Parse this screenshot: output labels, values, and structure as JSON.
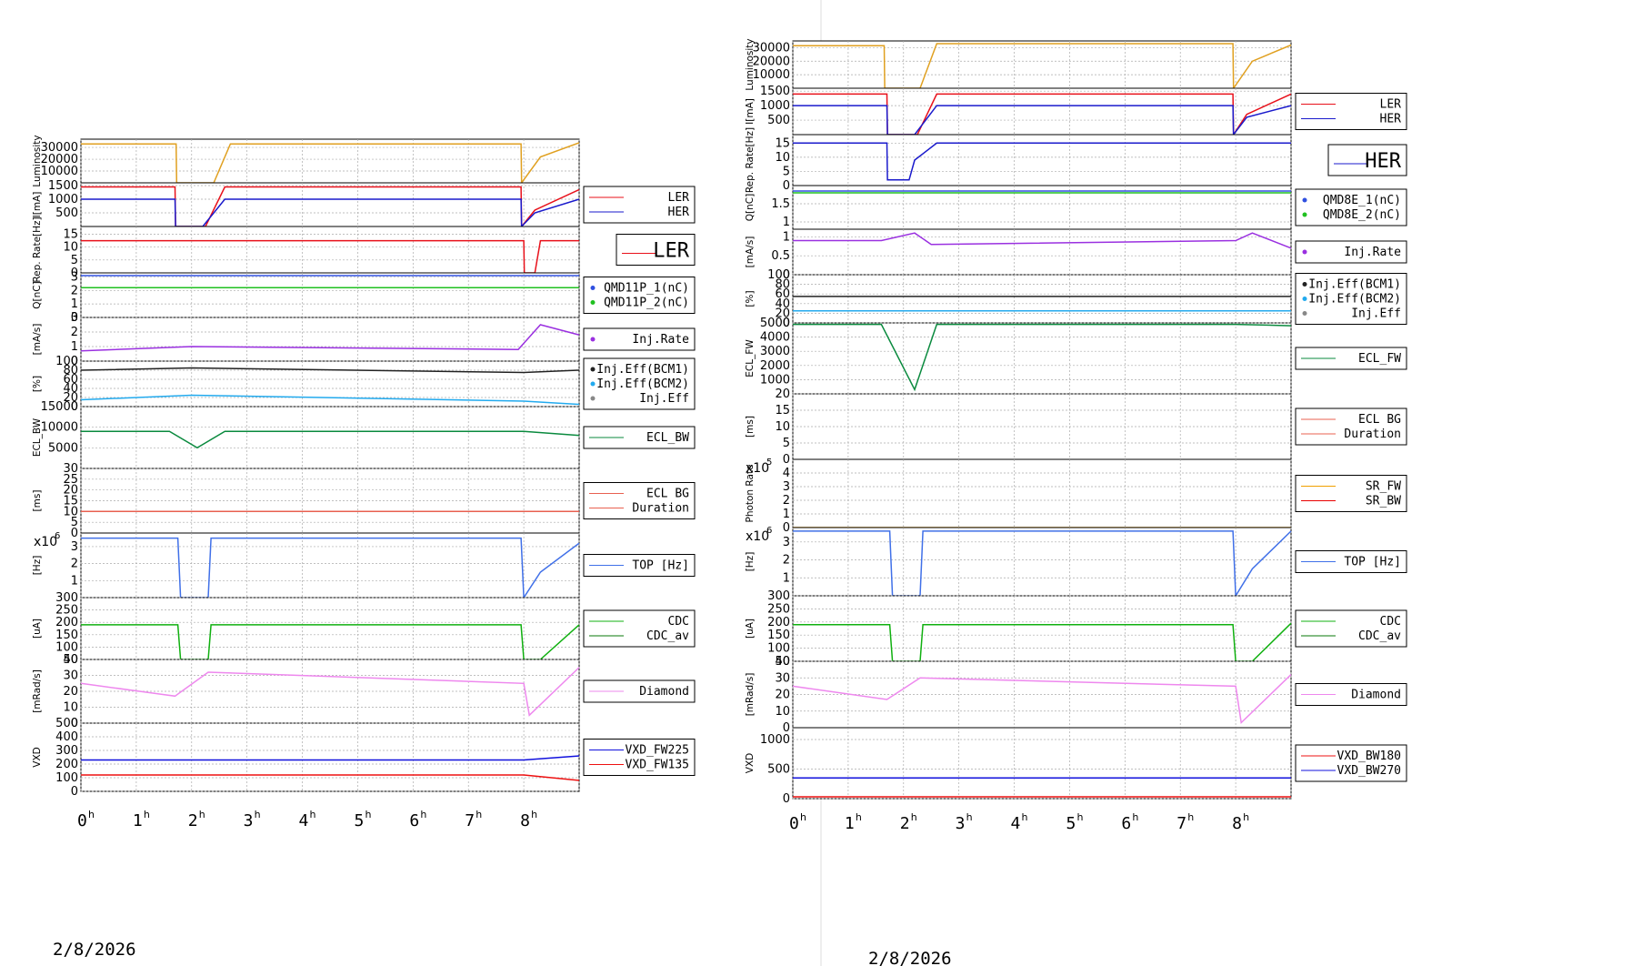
{
  "left": {
    "date": "2/8/2026",
    "x_tick_labels": [
      "0",
      "1",
      "2",
      "3",
      "4",
      "5",
      "6",
      "7",
      "8"
    ],
    "panels": [
      {
        "id": "lum",
        "ylabel": "Luminosity",
        "yticks": [
          10000,
          20000,
          30000
        ],
        "ylim": [
          0,
          37000
        ],
        "legend": []
      },
      {
        "id": "cur",
        "ylabel": "I[mA]",
        "yticks": [
          500,
          1000,
          1500
        ],
        "ylim": [
          0,
          1600
        ],
        "legend": [
          "LER",
          "HER"
        ]
      },
      {
        "id": "rep",
        "ylabel": "Rep. Rate[Hz]",
        "yticks": [
          0,
          5,
          10,
          15
        ],
        "ylim": [
          0,
          18
        ],
        "legend": [
          "LER"
        ],
        "legend_big": true
      },
      {
        "id": "q",
        "ylabel": "Q[nC]",
        "yticks": [
          0,
          1,
          2,
          3
        ],
        "ylim": [
          0,
          3.3
        ],
        "legend": [
          "QMD11P_1(nC)",
          "QMD11P_2(nC)"
        ]
      },
      {
        "id": "inj",
        "ylabel": "[mA/s]",
        "yticks": [
          0,
          1,
          2,
          3
        ],
        "ylim": [
          0,
          3
        ],
        "legend": [
          "Inj.Rate"
        ]
      },
      {
        "id": "eff",
        "ylabel": "[%]",
        "yticks": [
          0,
          20,
          40,
          60,
          80,
          100
        ],
        "ylim": [
          0,
          100
        ],
        "legend": [
          "Inj.Eff(BCM1)",
          "Inj.Eff(BCM2)",
          "Inj.Eff"
        ]
      },
      {
        "id": "eclbw",
        "ylabel": "ECL_BW",
        "yticks": [
          5000,
          10000,
          15000
        ],
        "ylim": [
          0,
          15000
        ],
        "legend": [
          "ECL_BW"
        ]
      },
      {
        "id": "eclbg",
        "ylabel": "[ms]",
        "yticks": [
          0,
          5,
          10,
          15,
          20,
          25,
          30
        ],
        "ylim": [
          0,
          30
        ],
        "legend": [
          "ECL BG",
          "Duration"
        ]
      },
      {
        "id": "top",
        "ylabel": "[Hz]",
        "yticks": [
          1,
          2,
          3
        ],
        "ylim": [
          0,
          3.8
        ],
        "exponent": "x10",
        "exp_power": "6",
        "legend": [
          "TOP [Hz]"
        ]
      },
      {
        "id": "cdc",
        "ylabel": "[uA]",
        "yticks": [
          50,
          100,
          150,
          200,
          250,
          300
        ],
        "ylim": [
          50,
          300
        ],
        "legend": [
          "CDC",
          "CDC_av"
        ]
      },
      {
        "id": "dia",
        "ylabel": "[mRad/s]",
        "yticks": [
          0,
          10,
          20,
          30,
          40
        ],
        "ylim": [
          0,
          40
        ],
        "legend": [
          "Diamond"
        ]
      },
      {
        "id": "vxd",
        "ylabel": "VXD",
        "yticks": [
          0,
          100,
          200,
          300,
          400,
          500
        ],
        "ylim": [
          0,
          500
        ],
        "legend": [
          "VXD_FW225",
          "VXD_FW135"
        ]
      }
    ]
  },
  "right": {
    "date": "2/8/2026",
    "x_tick_labels": [
      "0",
      "1",
      "2",
      "3",
      "4",
      "5",
      "6",
      "7",
      "8"
    ],
    "panels": [
      {
        "id": "lum",
        "ylabel": "Luminosity",
        "yticks": [
          10000,
          20000,
          30000
        ],
        "ylim": [
          0,
          35000
        ],
        "legend": []
      },
      {
        "id": "cur",
        "ylabel": "I[mA]",
        "yticks": [
          500,
          1000,
          1500
        ],
        "ylim": [
          0,
          1600
        ],
        "legend": [
          "LER",
          "HER"
        ]
      },
      {
        "id": "rep",
        "ylabel": "Rep. Rate[Hz]",
        "yticks": [
          0,
          5,
          10,
          15
        ],
        "ylim": [
          0,
          18
        ],
        "legend": [
          "HER"
        ],
        "legend_big": true
      },
      {
        "id": "q",
        "ylabel": "Q[nC]",
        "yticks": [
          1,
          1.5
        ],
        "ylim": [
          0.8,
          2.0
        ],
        "legend": [
          "QMD8E_1(nC)",
          "QMD8E_2(nC)"
        ]
      },
      {
        "id": "inj",
        "ylabel": "[mA/s]",
        "yticks": [
          0,
          0.5,
          1
        ],
        "ylim": [
          0,
          1.2
        ],
        "legend": [
          "Inj.Rate"
        ]
      },
      {
        "id": "eff",
        "ylabel": "[%]",
        "yticks": [
          0,
          20,
          40,
          60,
          80,
          100
        ],
        "ylim": [
          0,
          100
        ],
        "legend": [
          "Inj.Eff(BCM1)",
          "Inj.Eff(BCM2)",
          "Inj.Eff"
        ]
      },
      {
        "id": "eclfw",
        "ylabel": "ECL_FW",
        "yticks": [
          1000,
          2000,
          3000,
          4000,
          5000
        ],
        "ylim": [
          0,
          5000
        ],
        "legend": [
          "ECL_FW"
        ]
      },
      {
        "id": "eclbg",
        "ylabel": "[ms]",
        "yticks": [
          0,
          5,
          10,
          15,
          20
        ],
        "ylim": [
          0,
          20
        ],
        "legend": [
          "ECL BG",
          "Duration"
        ]
      },
      {
        "id": "photon",
        "ylabel": "Photon Rate",
        "yticks": [
          0,
          1,
          2,
          3,
          4
        ],
        "ylim": [
          0,
          5
        ],
        "exponent": "x10",
        "exp_power": "5",
        "legend": [
          "SR_FW",
          "SR_BW"
        ]
      },
      {
        "id": "top",
        "ylabel": "[Hz]",
        "yticks": [
          1,
          2,
          3
        ],
        "ylim": [
          0,
          3.8
        ],
        "exponent": "x10",
        "exp_power": "6",
        "legend": [
          "TOP [Hz]"
        ]
      },
      {
        "id": "cdc",
        "ylabel": "[uA]",
        "yticks": [
          50,
          100,
          150,
          200,
          250,
          300
        ],
        "ylim": [
          50,
          300
        ],
        "legend": [
          "CDC",
          "CDC_av"
        ]
      },
      {
        "id": "dia",
        "ylabel": "[mRad/s]",
        "yticks": [
          0,
          10,
          20,
          30,
          40
        ],
        "ylim": [
          0,
          40
        ],
        "legend": [
          "Diamond"
        ]
      },
      {
        "id": "vxd",
        "ylabel": "VXD",
        "yticks": [
          0,
          500,
          1000
        ],
        "ylim": [
          0,
          1200
        ],
        "legend": [
          "VXD_BW180",
          "VXD_BW270"
        ]
      }
    ]
  },
  "chart_data": [
    {
      "type": "line",
      "x_unit": "hours since 0h00m00s 2/8/2026",
      "series": [
        {
          "name": "LER",
          "panel": "cur",
          "x": [
            0,
            1.7,
            1.71,
            2.25,
            2.6,
            7.95,
            7.96,
            8.2,
            9
          ],
          "y": [
            1450,
            1450,
            0,
            0,
            1450,
            1450,
            0,
            600,
            1350
          ]
        },
        {
          "name": "HER",
          "panel": "cur",
          "x": [
            0,
            1.7,
            1.71,
            2.2,
            2.6,
            7.95,
            7.96,
            8.2,
            9
          ],
          "y": [
            1000,
            1000,
            0,
            0,
            1000,
            1000,
            0,
            500,
            1000
          ]
        },
        {
          "name": "LER",
          "panel": "rep",
          "x": [
            0,
            8.0,
            8.01,
            8.2,
            8.3,
            9
          ],
          "y": [
            12.5,
            12.5,
            0,
            0,
            12.5,
            12.5
          ]
        },
        {
          "name": "QMD11P_1(nC)",
          "panel": "q",
          "x": [
            0,
            9
          ],
          "y": [
            3.1,
            3.1
          ]
        },
        {
          "name": "QMD11P_2(nC)",
          "panel": "q",
          "x": [
            0,
            9
          ],
          "y": [
            2.2,
            2.2
          ]
        },
        {
          "name": "Inj.Rate",
          "panel": "inj",
          "x": [
            0,
            2,
            7.9,
            8.3,
            9
          ],
          "y": [
            0.7,
            1.0,
            0.8,
            2.5,
            1.8
          ]
        },
        {
          "name": "Inj.Eff(BCM1)",
          "panel": "eff",
          "x": [
            0,
            2,
            8,
            9
          ],
          "y": [
            80,
            85,
            75,
            80
          ]
        },
        {
          "name": "Inj.Eff(BCM2)",
          "panel": "eff",
          "x": [
            0,
            2,
            8,
            9
          ],
          "y": [
            15,
            25,
            12,
            5
          ]
        },
        {
          "name": "ECL_BW",
          "panel": "eclbw",
          "x": [
            0,
            1.6,
            2.1,
            2.6,
            8,
            9
          ],
          "y": [
            9000,
            9000,
            5000,
            9000,
            9000,
            8000
          ]
        },
        {
          "name": "ECL BG Duration",
          "panel": "eclbg",
          "x": [
            0,
            9
          ],
          "y": [
            10,
            10
          ]
        },
        {
          "name": "TOP [Hz]",
          "panel": "top",
          "x": [
            0,
            1.75,
            1.8,
            2.3,
            2.35,
            7.95,
            8.0,
            8.3,
            9
          ],
          "y": [
            3.5,
            3.5,
            0,
            0,
            3.5,
            3.5,
            0,
            1.5,
            3.2
          ]
        },
        {
          "name": "CDC",
          "panel": "cdc",
          "x": [
            0,
            1.75,
            1.8,
            2.3,
            2.35,
            7.95,
            8.0,
            8.3,
            9
          ],
          "y": [
            190,
            190,
            50,
            50,
            190,
            190,
            50,
            50,
            190
          ]
        },
        {
          "name": "Diamond",
          "panel": "dia",
          "x": [
            0,
            1.7,
            2.3,
            8,
            8.1,
            9
          ],
          "y": [
            25,
            17,
            32,
            25,
            5,
            35
          ]
        },
        {
          "name": "VXD_FW225",
          "panel": "vxd",
          "x": [
            0,
            8,
            9
          ],
          "y": [
            230,
            230,
            260
          ]
        },
        {
          "name": "VXD_FW135",
          "panel": "vxd",
          "x": [
            0,
            8,
            9
          ],
          "y": [
            120,
            120,
            80
          ]
        }
      ]
    },
    {
      "type": "line",
      "x_unit": "hours since 0h00m00s 2/8/2026",
      "series": [
        {
          "name": "LER",
          "panel": "cur",
          "x": [
            0,
            1.7,
            1.71,
            2.25,
            2.6,
            7.95,
            7.96,
            8.2,
            9
          ],
          "y": [
            1400,
            1400,
            0,
            0,
            1400,
            1400,
            0,
            700,
            1400
          ]
        },
        {
          "name": "HER",
          "panel": "cur",
          "x": [
            0,
            1.7,
            1.71,
            2.2,
            2.6,
            7.95,
            7.96,
            8.2,
            9
          ],
          "y": [
            1000,
            1000,
            0,
            0,
            1000,
            1000,
            0,
            600,
            1000
          ]
        },
        {
          "name": "HER",
          "panel": "rep",
          "x": [
            0,
            1.7,
            1.71,
            2.1,
            2.2,
            2.6,
            9
          ],
          "y": [
            15,
            15,
            2,
            2,
            9,
            15,
            15
          ]
        },
        {
          "name": "QMD8E_1(nC)",
          "panel": "q",
          "x": [
            0,
            9
          ],
          "y": [
            1.85,
            1.85
          ]
        },
        {
          "name": "QMD8E_2(nC)",
          "panel": "q",
          "x": [
            0,
            9
          ],
          "y": [
            1.8,
            1.8
          ]
        },
        {
          "name": "Inj.Rate",
          "panel": "inj",
          "x": [
            0,
            1.6,
            2.2,
            2.5,
            8,
            8.3,
            9
          ],
          "y": [
            0.9,
            0.9,
            1.1,
            0.8,
            0.9,
            1.1,
            0.7
          ]
        },
        {
          "name": "Inj.Eff(BCM1)",
          "panel": "eff",
          "x": [
            0,
            9
          ],
          "y": [
            55,
            55
          ]
        },
        {
          "name": "Inj.Eff(BCM2)",
          "panel": "eff",
          "x": [
            0,
            9
          ],
          "y": [
            25,
            25
          ]
        },
        {
          "name": "ECL_FW",
          "panel": "eclfw",
          "x": [
            0,
            1.6,
            2.2,
            2.6,
            8,
            9
          ],
          "y": [
            4900,
            4900,
            300,
            4900,
            4900,
            4800
          ]
        },
        {
          "name": "SR_FW",
          "panel": "photon",
          "x": [
            0,
            9
          ],
          "y": [
            0,
            0
          ]
        },
        {
          "name": "TOP [Hz]",
          "panel": "top",
          "x": [
            0,
            1.75,
            1.8,
            2.3,
            2.35,
            7.95,
            8.0,
            8.3,
            9
          ],
          "y": [
            3.6,
            3.6,
            0,
            0,
            3.6,
            3.6,
            0,
            1.5,
            3.6
          ]
        },
        {
          "name": "CDC",
          "panel": "cdc",
          "x": [
            0,
            1.75,
            1.8,
            2.3,
            2.35,
            7.95,
            8.0,
            8.3,
            9
          ],
          "y": [
            190,
            190,
            50,
            50,
            190,
            190,
            50,
            50,
            195
          ]
        },
        {
          "name": "Diamond",
          "panel": "dia",
          "x": [
            0,
            1.7,
            2.3,
            8,
            8.1,
            9
          ],
          "y": [
            25,
            17,
            30,
            25,
            3,
            32
          ]
        },
        {
          "name": "VXD_BW180",
          "panel": "vxd",
          "x": [
            0,
            9
          ],
          "y": [
            30,
            30
          ]
        },
        {
          "name": "VXD_BW270",
          "panel": "vxd",
          "x": [
            0,
            9
          ],
          "y": [
            350,
            350
          ]
        }
      ]
    }
  ]
}
